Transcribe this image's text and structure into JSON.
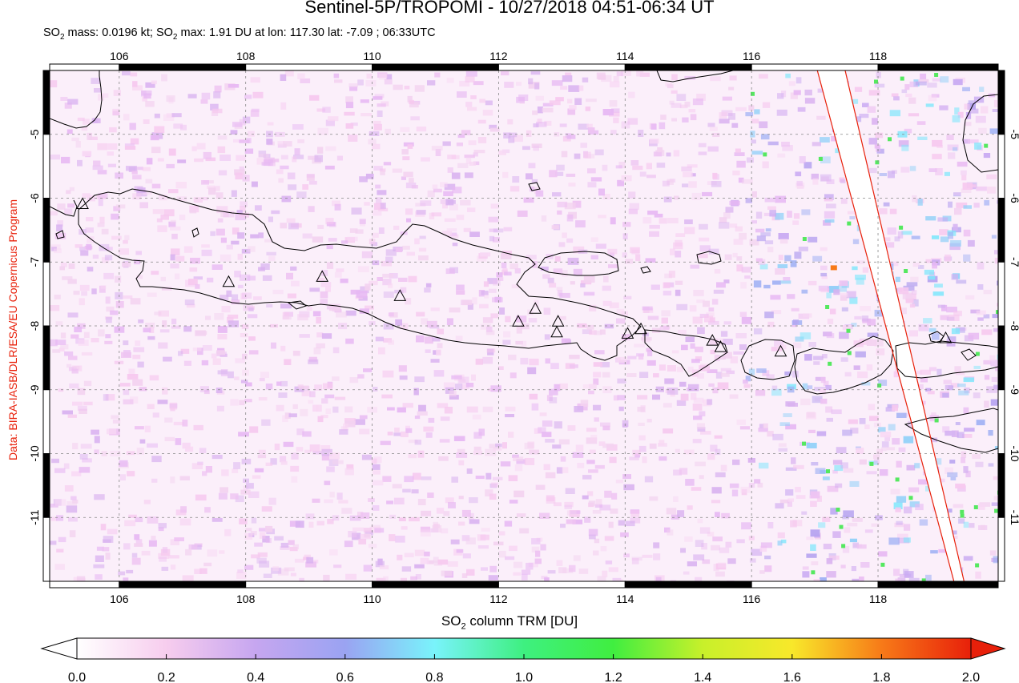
{
  "header": {
    "title": "Sentinel-5P/TROPOMI - 10/27/2018 04:51-06:34 UT",
    "stats": {
      "mass_prefix": "SO",
      "mass_sub": "2",
      "mass_text": " mass: 0.0196 kt; SO",
      "max_sub": "2",
      "max_text": " max: 1.91 DU at lon: 117.30 lat: -7.09 ; 06:33UTC"
    }
  },
  "credit": "Data: BIRA-IASB/DLR/ESA/EU Copernicus Program",
  "map": {
    "lon_range": [
      104.9,
      119.9
    ],
    "lat_range": [
      -12.0,
      -4.0
    ],
    "lon_ticks": [
      106,
      108,
      110,
      112,
      114,
      116,
      118
    ],
    "lat_ticks": [
      -5,
      -6,
      -7,
      -8,
      -9,
      -10,
      -11
    ],
    "lon_tick_labels": [
      "106",
      "108",
      "110",
      "112",
      "114",
      "116",
      "118"
    ],
    "lat_tick_labels": [
      "-5",
      "-6",
      "-7",
      "-8",
      "-9",
      "-10",
      "-11"
    ],
    "grid": true,
    "volcanoes": [
      {
        "lon": 105.42,
        "lat": -6.1
      },
      {
        "lon": 107.73,
        "lat": -7.32
      },
      {
        "lon": 109.21,
        "lat": -7.24
      },
      {
        "lon": 110.44,
        "lat": -7.54
      },
      {
        "lon": 112.31,
        "lat": -7.94
      },
      {
        "lon": 112.58,
        "lat": -7.74
      },
      {
        "lon": 112.94,
        "lat": -7.94
      },
      {
        "lon": 112.92,
        "lat": -8.11
      },
      {
        "lon": 114.04,
        "lat": -8.13
      },
      {
        "lon": 114.25,
        "lat": -8.06
      },
      {
        "lon": 115.38,
        "lat": -8.24
      },
      {
        "lon": 115.51,
        "lat": -8.34
      },
      {
        "lon": 116.46,
        "lat": -8.41
      },
      {
        "lon": 119.07,
        "lat": -8.2
      }
    ],
    "swath_edges": [
      {
        "lon_top": 117.04,
        "lon_bottom": 119.2
      },
      {
        "lon_top": 117.48,
        "lon_bottom": 119.36
      }
    ],
    "colors": {
      "coast": "#000000",
      "swath_edge": "#e8200a",
      "grid": "#888888"
    }
  },
  "colorbar": {
    "label_prefix": "SO",
    "label_sub": "2",
    "label_text": " column TRM [DU]",
    "min": 0.0,
    "max": 2.0,
    "ticks": [
      "0.0",
      "0.2",
      "0.4",
      "0.6",
      "0.8",
      "1.0",
      "1.2",
      "1.4",
      "1.6",
      "1.8",
      "2.0"
    ],
    "stops": [
      "#ffffff",
      "#f7cdee",
      "#c6a6f0",
      "#9aa3f2",
      "#79f3fb",
      "#3ef080",
      "#40ee40",
      "#c8f02a",
      "#f8e82a",
      "#f77a18",
      "#e8200a"
    ]
  }
}
